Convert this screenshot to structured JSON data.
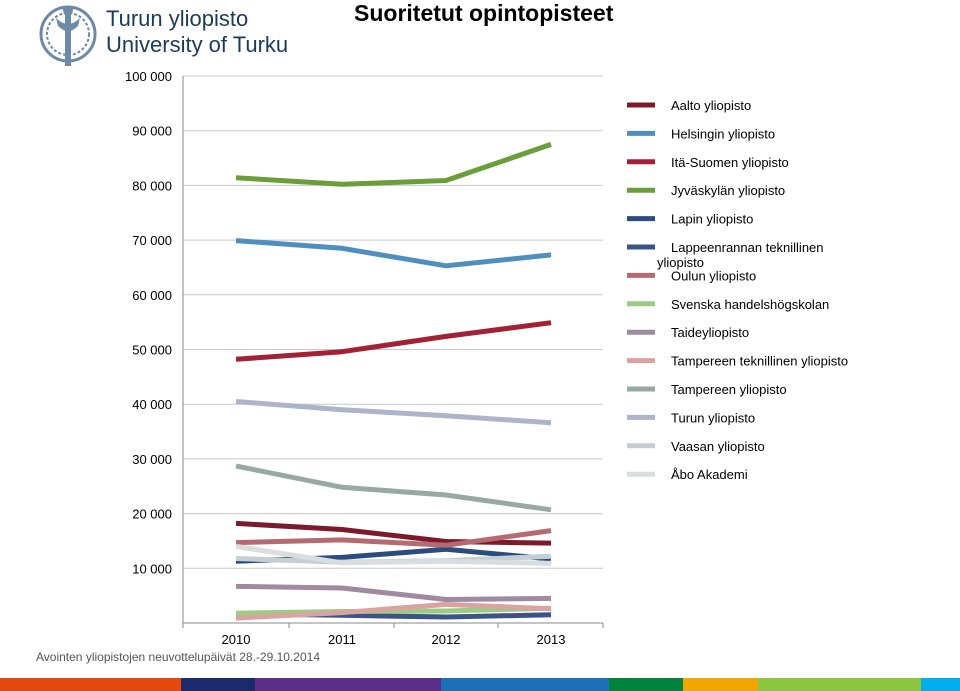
{
  "header": {
    "logo_line1": "Turun yliopisto",
    "logo_line2": "University of Turku",
    "title": "Suoritetut opintopisteet"
  },
  "footer": {
    "text": "Avointen yliopistojen neuvottelupäivät 28.-29.10.2014"
  },
  "chart_data": {
    "type": "line",
    "title": "Suoritetut opintopisteet",
    "categories": [
      "2010",
      "2011",
      "2012",
      "2013"
    ],
    "ylim": [
      0,
      100000
    ],
    "yticks": [
      10000,
      20000,
      30000,
      40000,
      50000,
      60000,
      70000,
      80000,
      90000,
      100000
    ],
    "ytick_labels": [
      "10 000",
      "20 000",
      "30 000",
      "40 000",
      "50 000",
      "60 000",
      "70 000",
      "80 000",
      "90 000",
      "100 000"
    ],
    "grid": true,
    "legend_position": "right",
    "series": [
      {
        "name": "Aalto yliopisto",
        "color": "#7b1a2a",
        "values": [
          18200,
          17100,
          14900,
          14600
        ]
      },
      {
        "name": "Helsingin yliopisto",
        "color": "#4f8fbf",
        "values": [
          69900,
          68500,
          65300,
          67300
        ]
      },
      {
        "name": "Itä-Suomen yliopisto",
        "color": "#a32035",
        "values": [
          48200,
          49600,
          52400,
          54900
        ]
      },
      {
        "name": "Jyväskylän yliopisto",
        "color": "#6a9e3a",
        "values": [
          81400,
          80200,
          80900,
          87500
        ]
      },
      {
        "name": "Lapin yliopisto",
        "color": "#2a4d7e",
        "values": [
          11300,
          12000,
          13500,
          11700
        ]
      },
      {
        "name": "Lappeenrannan teknillinen yliopisto",
        "color": "#3b5386",
        "values": [
          1700,
          1400,
          1100,
          1500
        ]
      },
      {
        "name": "Oulun yliopisto",
        "color": "#b56a72",
        "values": [
          14700,
          15200,
          14200,
          16900
        ]
      },
      {
        "name": "Svenska handelshögskolan",
        "color": "#9ccb86",
        "values": [
          1800,
          2100,
          2200,
          2700
        ]
      },
      {
        "name": "Taideyliopisto",
        "color": "#a08aa2",
        "values": [
          6700,
          6400,
          4300,
          4500
        ]
      },
      {
        "name": "Tampereen teknillinen yliopisto",
        "color": "#d9a3a0",
        "values": [
          900,
          1900,
          3400,
          2600
        ]
      },
      {
        "name": "Tampereen yliopisto",
        "color": "#96aaa2",
        "values": [
          28700,
          24800,
          23400,
          20700
        ]
      },
      {
        "name": "Turun yliopisto",
        "color": "#adb3c9",
        "values": [
          40500,
          39000,
          37900,
          36600
        ]
      },
      {
        "name": "Vaasan yliopisto",
        "color": "#c5cfd1",
        "values": [
          11800,
          11100,
          11400,
          12200
        ]
      },
      {
        "name": "Åbo Akademi",
        "color": "#d9dde0",
        "values": [
          14000,
          11000,
          11300,
          10900
        ]
      }
    ]
  },
  "bottom_bar": {
    "segments": [
      {
        "color": "#e8480e"
      },
      {
        "color": "#1b2a6b"
      },
      {
        "color": "#5b2e8a"
      },
      {
        "color": "#1c70b7"
      },
      {
        "color": "#00843d"
      },
      {
        "color": "#f0a800"
      },
      {
        "color": "#8cc63f"
      },
      {
        "color": "#00aeef"
      }
    ]
  }
}
